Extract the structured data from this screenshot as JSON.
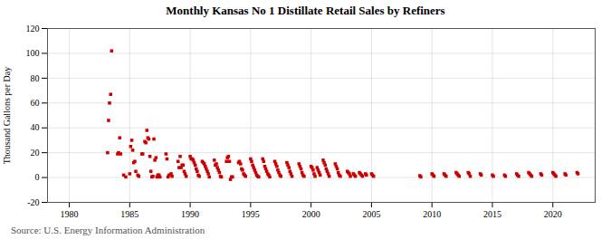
{
  "chart_data": {
    "type": "scatter",
    "title": "Monthly Kansas No 1 Distillate Retail Sales by Refiners",
    "ylabel": "Thousand Gallons per Day",
    "source": "Source: U.S. Energy Information Administration",
    "color": "#cc0000",
    "marker": "square",
    "grid": true,
    "xlim": [
      1978.2,
      2023.5
    ],
    "xticks": [
      1980,
      1985,
      1990,
      1995,
      2000,
      2005,
      2010,
      2015,
      2020
    ],
    "ylim": [
      -20,
      120
    ],
    "yticks": [
      -20,
      0,
      20,
      40,
      60,
      80,
      100,
      120
    ],
    "x": [
      1983.17,
      1983.25,
      1983.33,
      1983.42,
      1983.5,
      1984.0,
      1984.08,
      1984.17,
      1984.25,
      1984.5,
      1984.67,
      1985.0,
      1985.08,
      1985.17,
      1985.25,
      1985.33,
      1985.42,
      1985.5,
      1985.67,
      1985.75,
      1986.0,
      1986.08,
      1986.25,
      1986.33,
      1986.42,
      1986.5,
      1986.58,
      1986.67,
      1986.75,
      1986.83,
      1986.92,
      1987.0,
      1987.08,
      1987.17,
      1987.25,
      1987.33,
      1987.42,
      1987.5,
      1988.0,
      1988.08,
      1988.17,
      1988.25,
      1988.42,
      1988.5,
      1989.0,
      1989.08,
      1989.17,
      1989.25,
      1989.33,
      1989.42,
      1989.5,
      1989.58,
      1989.67,
      1990.0,
      1990.08,
      1990.17,
      1990.25,
      1990.33,
      1990.42,
      1990.5,
      1990.58,
      1990.67,
      1990.75,
      1991.0,
      1991.08,
      1991.17,
      1991.25,
      1991.33,
      1991.42,
      1991.5,
      1991.58,
      1992.0,
      1992.08,
      1992.17,
      1992.25,
      1992.33,
      1992.42,
      1992.5,
      1992.58,
      1993.0,
      1993.08,
      1993.17,
      1993.25,
      1993.33,
      1993.42,
      1993.5,
      1994.0,
      1994.08,
      1994.17,
      1994.25,
      1994.33,
      1994.42,
      1994.5,
      1994.58,
      1995.0,
      1995.08,
      1995.17,
      1995.25,
      1995.33,
      1995.42,
      1995.5,
      1995.58,
      1995.67,
      1996.0,
      1996.08,
      1996.17,
      1996.25,
      1996.33,
      1996.42,
      1996.5,
      1996.58,
      1997.0,
      1997.08,
      1997.17,
      1997.25,
      1997.33,
      1997.42,
      1997.5,
      1998.0,
      1998.08,
      1998.17,
      1998.25,
      1998.33,
      1998.42,
      1999.0,
      1999.08,
      1999.17,
      1999.25,
      1999.33,
      1999.42,
      2000.0,
      2000.08,
      2000.17,
      2000.25,
      2000.33,
      2000.5,
      2000.58,
      2000.67,
      2000.75,
      2001.0,
      2001.08,
      2001.17,
      2001.25,
      2001.33,
      2001.42,
      2001.5,
      2002.0,
      2002.08,
      2002.17,
      2002.25,
      2002.33,
      2002.42,
      2003.0,
      2003.08,
      2003.17,
      2003.25,
      2003.5,
      2003.58,
      2003.67,
      2004.0,
      2004.08,
      2004.17,
      2004.25,
      2004.5,
      2004.58,
      2005.0,
      2005.08,
      2005.17,
      2009.0,
      2009.08,
      2010.0,
      2010.08,
      2010.17,
      2011.0,
      2011.08,
      2011.17,
      2012.0,
      2012.08,
      2012.17,
      2012.25,
      2013.0,
      2013.08,
      2013.17,
      2014.0,
      2014.08,
      2015.0,
      2015.08,
      2016.0,
      2016.08,
      2017.0,
      2017.08,
      2017.17,
      2018.0,
      2018.08,
      2018.17,
      2018.25,
      2019.0,
      2019.08,
      2020.0,
      2020.08,
      2020.17,
      2020.25,
      2021.0,
      2021.08,
      2022.0,
      2022.08
    ],
    "values": [
      20.0,
      46.0,
      60.0,
      67.0,
      102.0,
      19.0,
      20.0,
      32.0,
      19.0,
      2.0,
      0.5,
      3.0,
      25.0,
      30.0,
      22.0,
      12.0,
      13.0,
      5.0,
      2.0,
      1.0,
      19.0,
      19.0,
      29.0,
      28.0,
      38.0,
      32.0,
      31.0,
      17.0,
      5.0,
      0.5,
      1.0,
      31.0,
      14.0,
      16.0,
      0.5,
      2.0,
      2.0,
      0.5,
      19.0,
      15.0,
      0.5,
      2.0,
      3.0,
      1.0,
      13.0,
      8.0,
      17.0,
      8.0,
      10.0,
      10.0,
      5.0,
      3.0,
      1.0,
      17.0,
      15.0,
      15.0,
      14.0,
      12.0,
      10.0,
      7.0,
      5.0,
      2.0,
      1.0,
      13.0,
      12.0,
      11.0,
      9.0,
      7.0,
      5.0,
      3.0,
      0.5,
      14.0,
      10.0,
      11.0,
      8.0,
      6.0,
      4.0,
      1.0,
      0.5,
      13.0,
      16.0,
      17.0,
      13.0,
      -1.5,
      0.5,
      0.5,
      12.0,
      13.0,
      11.0,
      7.0,
      6.0,
      3.0,
      2.0,
      1.0,
      15.0,
      13.0,
      10.0,
      8.0,
      6.0,
      4.0,
      2.0,
      1.0,
      0.5,
      15.0,
      13.0,
      9.0,
      7.0,
      5.0,
      3.0,
      2.0,
      0.5,
      13.0,
      11.0,
      9.0,
      6.0,
      4.0,
      2.0,
      1.0,
      12.0,
      10.0,
      8.0,
      5.0,
      3.0,
      1.0,
      11.0,
      9.0,
      7.0,
      4.0,
      2.0,
      1.0,
      9.0,
      8.0,
      6.0,
      3.0,
      1.0,
      8.0,
      6.0,
      4.0,
      2.0,
      14.0,
      12.0,
      10.0,
      7.0,
      5.0,
      3.0,
      1.0,
      11.0,
      9.0,
      7.0,
      4.0,
      2.0,
      1.0,
      5.0,
      4.0,
      3.0,
      1.0,
      3.0,
      2.0,
      1.0,
      4.0,
      3.0,
      2.0,
      1.0,
      3.0,
      2.0,
      3.0,
      2.0,
      1.0,
      1.5,
      0.5,
      3.0,
      2.0,
      1.0,
      3.0,
      2.0,
      1.0,
      4.0,
      3.0,
      2.0,
      1.0,
      4.0,
      3.0,
      1.0,
      3.0,
      2.0,
      2.0,
      1.0,
      2.0,
      1.0,
      3.0,
      2.0,
      1.0,
      4.0,
      3.0,
      2.0,
      1.0,
      3.0,
      2.0,
      4.0,
      3.0,
      2.0,
      1.0,
      3.0,
      2.0,
      4.0,
      3.0
    ]
  }
}
